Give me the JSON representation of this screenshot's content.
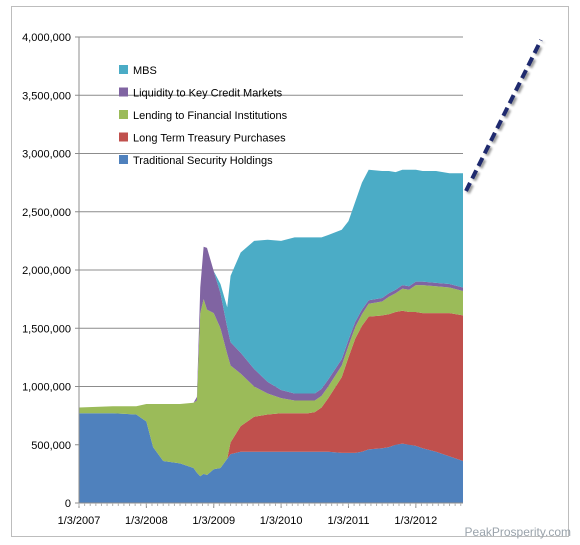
{
  "chart_data": {
    "type": "area",
    "stacked": true,
    "ylim": [
      0,
      4000000
    ],
    "yticks": [
      "0",
      "500,000",
      "1,000,000",
      "1,500,000",
      "2,000,000",
      "2,500,000",
      "3,000,000",
      "3,500,000",
      "4,000,000"
    ],
    "xticks": [
      "1/3/2007",
      "1/3/2008",
      "1/3/2009",
      "1/3/2010",
      "1/3/2011",
      "1/3/2012"
    ],
    "x": [
      2007.0,
      2007.5,
      2007.85,
      2008.0,
      2008.1,
      2008.25,
      2008.5,
      2008.7,
      2008.75,
      2008.8,
      2008.85,
      2008.9,
      2009.0,
      2009.1,
      2009.2,
      2009.25,
      2009.4,
      2009.6,
      2009.8,
      2010.0,
      2010.2,
      2010.4,
      2010.5,
      2010.6,
      2010.7,
      2010.9,
      2011.0,
      2011.1,
      2011.2,
      2011.3,
      2011.5,
      2011.6,
      2011.7,
      2011.8,
      2011.9,
      2012.0,
      2012.1,
      2012.3,
      2012.5,
      2012.7
    ],
    "series": [
      {
        "name": "Traditional Security Holdings",
        "color": "#4f81bd",
        "values": [
          770000,
          770000,
          760000,
          700000,
          480000,
          360000,
          340000,
          300000,
          260000,
          230000,
          250000,
          240000,
          290000,
          300000,
          380000,
          420000,
          440000,
          440000,
          440000,
          440000,
          440000,
          440000,
          440000,
          440000,
          440000,
          430000,
          430000,
          430000,
          440000,
          460000,
          470000,
          480000,
          500000,
          510000,
          500000,
          490000,
          470000,
          440000,
          400000,
          360000
        ]
      },
      {
        "name": "Long Term Treasury Purchases",
        "color": "#c0504d",
        "values": [
          0,
          0,
          0,
          0,
          0,
          0,
          0,
          0,
          0,
          0,
          0,
          0,
          0,
          0,
          0,
          100000,
          220000,
          300000,
          320000,
          330000,
          330000,
          330000,
          340000,
          380000,
          460000,
          650000,
          820000,
          980000,
          1080000,
          1140000,
          1140000,
          1140000,
          1140000,
          1140000,
          1140000,
          1150000,
          1160000,
          1190000,
          1230000,
          1250000
        ]
      },
      {
        "name": "Lending to Financial Institutions",
        "color": "#9bbb59",
        "values": [
          50000,
          60000,
          70000,
          150000,
          370000,
          490000,
          510000,
          560000,
          620000,
          1400000,
          1500000,
          1420000,
          1340000,
          1200000,
          900000,
          660000,
          450000,
          260000,
          180000,
          130000,
          110000,
          110000,
          100000,
          100000,
          100000,
          100000,
          100000,
          100000,
          100000,
          110000,
          120000,
          150000,
          160000,
          190000,
          190000,
          230000,
          240000,
          230000,
          220000,
          210000
        ]
      },
      {
        "name": "Liquidity to Key Credit Markets",
        "color": "#8064a2",
        "values": [
          0,
          0,
          0,
          0,
          0,
          0,
          0,
          0,
          30000,
          220000,
          450000,
          530000,
          360000,
          300000,
          230000,
          200000,
          180000,
          150000,
          100000,
          70000,
          60000,
          60000,
          60000,
          60000,
          60000,
          55000,
          50000,
          45000,
          40000,
          30000,
          30000,
          30000,
          30000,
          30000,
          30000,
          30000,
          30000,
          30000,
          30000,
          30000
        ]
      },
      {
        "name": "MBS",
        "color": "#4bacc6",
        "values": [
          0,
          0,
          0,
          0,
          0,
          0,
          0,
          0,
          0,
          0,
          0,
          0,
          0,
          80000,
          170000,
          570000,
          860000,
          1100000,
          1220000,
          1280000,
          1340000,
          1340000,
          1340000,
          1300000,
          1240000,
          1110000,
          1020000,
          1030000,
          1090000,
          1120000,
          1090000,
          1050000,
          1010000,
          990000,
          1000000,
          960000,
          950000,
          960000,
          950000,
          980000
        ]
      }
    ],
    "annotation": "projection-dashed-line"
  },
  "watermark": "PeakProsperity.com"
}
